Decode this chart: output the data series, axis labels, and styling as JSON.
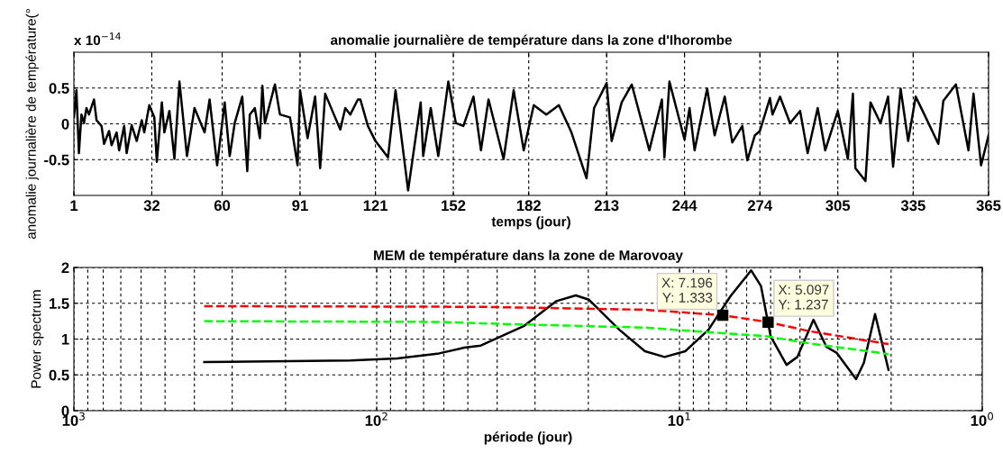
{
  "chart_data": [
    {
      "type": "line",
      "title": "anomalie journalière de température dans la zone d'Ihorombe",
      "xlabel": "temps (jour)",
      "ylabel": "anomalie journalière de température(°",
      "annotations": [
        "x 10$^{−14}$"
      ],
      "xlim": [
        1,
        365
      ],
      "xticks": [
        1,
        32,
        60,
        91,
        121,
        152,
        182,
        213,
        244,
        274,
        305,
        335,
        365
      ],
      "ylim": [
        -1,
        1
      ],
      "yticks": [
        -0.5,
        0,
        0.5
      ],
      "grid": true,
      "series": [
        {
          "color": "#000000",
          "x": [
            1,
            2,
            3,
            4,
            5,
            6,
            7,
            9,
            10,
            12,
            13,
            15,
            16,
            18,
            19,
            21,
            22,
            24,
            26,
            28,
            29,
            31,
            33,
            34,
            36,
            37,
            39,
            41,
            43,
            46,
            49,
            53,
            55,
            58,
            61,
            63,
            65,
            68,
            70,
            71,
            73,
            75,
            76,
            77,
            81,
            83,
            87,
            90,
            91,
            94,
            97,
            99,
            101,
            107,
            109,
            111,
            114,
            115,
            118,
            121,
            126,
            129,
            134,
            139,
            140,
            143,
            146,
            150,
            153,
            156,
            160,
            163,
            166,
            172,
            176,
            180,
            184,
            189,
            194,
            199,
            205,
            208,
            213,
            215,
            219,
            223,
            230,
            235,
            236,
            238,
            244,
            246,
            248,
            253,
            256,
            260,
            263,
            267,
            269,
            272,
            274,
            278,
            279,
            282,
            286,
            290,
            293,
            297,
            300,
            305,
            309,
            311,
            312,
            316,
            318,
            322,
            325,
            327,
            330,
            333,
            336,
            340,
            345,
            347,
            352,
            357,
            359,
            362,
            365
          ],
          "values": [
            0.09,
            0.47,
            -0.41,
            0.13,
            0.01,
            0.22,
            0.13,
            0.34,
            0.05,
            -0.03,
            -0.28,
            -0.1,
            -0.3,
            -0.12,
            -0.37,
            -0.03,
            -0.41,
            -0.02,
            -0.24,
            0.05,
            -0.12,
            0.26,
            0.09,
            -0.53,
            0.3,
            -0.12,
            0.18,
            -0.49,
            0.59,
            -0.45,
            0.22,
            -0.12,
            0.34,
            -0.58,
            0.3,
            -0.45,
            0.01,
            0.38,
            -0.66,
            0.13,
            0.22,
            -0.2,
            0.53,
            0.01,
            0.55,
            0.13,
            0.09,
            -0.58,
            0.47,
            -0.2,
            0.38,
            -0.62,
            0.42,
            -0.08,
            0.22,
            0.13,
            0.34,
            0.34,
            -0.03,
            -0.24,
            -0.47,
            0.47,
            -0.93,
            0.3,
            -0.45,
            0.22,
            -0.45,
            0.59,
            0.01,
            -0.03,
            0.38,
            -0.37,
            0.34,
            -0.49,
            0.47,
            -0.37,
            0.26,
            0.13,
            0.26,
            -0.12,
            -0.76,
            0.22,
            0.57,
            -0.24,
            0.3,
            0.55,
            -0.37,
            0.34,
            -0.47,
            0.59,
            -0.22,
            0.22,
            -0.37,
            0.49,
            -0.16,
            0.38,
            -0.26,
            -0.03,
            -0.51,
            -0.16,
            -0.1,
            0.36,
            0.13,
            0.38,
            0.01,
            0.18,
            -0.41,
            0.22,
            -0.37,
            0.18,
            -0.49,
            0.42,
            -0.62,
            -0.8,
            0.3,
            0.01,
            0.38,
            -0.6,
            0.49,
            -0.24,
            0.38,
            0.09,
            -0.28,
            0.32,
            0.55,
            -0.37,
            0.42,
            -0.58,
            -0.16
          ]
        }
      ]
    },
    {
      "type": "line",
      "title": "MEM de température dans la zone de Marovoay",
      "xlabel": "période (jour)",
      "ylabel": "Power spectrum",
      "log": "x",
      "xlim": [
        1000,
        1
      ],
      "xticks": [
        {
          "value": 1000,
          "label": "10$^{3}$"
        },
        {
          "value": 100,
          "label": "10$^{2}$"
        },
        {
          "value": 10,
          "label": "10$^{1}$"
        },
        {
          "value": 1,
          "label": "10$^{0}$"
        }
      ],
      "ylim": [
        0,
        2
      ],
      "yticks": [
        0,
        0.5,
        1,
        1.5,
        2
      ],
      "grid": true,
      "annotations": [
        {
          "text": "X: 7.196\nY: 1.333",
          "x": 7.196,
          "y": 1.333
        },
        {
          "text": "X: 5.097\nY: 1.237",
          "x": 5.097,
          "y": 1.237
        }
      ],
      "series": [
        {
          "color": "#000000",
          "line_style": "solid",
          "x": [
            371,
            122,
            85.5,
            62.2,
            51.4,
            45.3,
            32.7,
            25.5,
            22.0,
            19.9,
            15.8,
            13.0,
            11.2,
            9.57,
            8.02,
            6.78,
            5.8,
            5.38,
            5.0,
            4.43,
            4.08,
            3.61,
            3.27,
            3.03,
            2.61,
            2.46,
            2.26,
            2.04
          ],
          "values": [
            0.68,
            0.7,
            0.73,
            0.8,
            0.88,
            0.91,
            1.18,
            1.53,
            1.61,
            1.55,
            1.13,
            0.83,
            0.75,
            0.83,
            1.13,
            1.6,
            1.96,
            1.74,
            1.04,
            0.64,
            0.75,
            1.27,
            0.89,
            0.81,
            0.44,
            0.67,
            1.35,
            0.57
          ]
        },
        {
          "color": "#ff0000",
          "line_style": "dashed",
          "x": [
            371,
            45.3,
            13.0,
            7.196,
            5.097,
            3.72,
            2.04
          ],
          "values": [
            1.46,
            1.45,
            1.41,
            1.333,
            1.237,
            1.11,
            0.93
          ]
        },
        {
          "color": "#00ff00",
          "line_style": "dashed",
          "x": [
            371,
            62,
            45.3,
            13.0,
            5.2,
            3.72,
            2.04
          ],
          "values": [
            1.25,
            1.24,
            1.22,
            1.16,
            1.04,
            0.94,
            0.79
          ]
        }
      ]
    }
  ]
}
